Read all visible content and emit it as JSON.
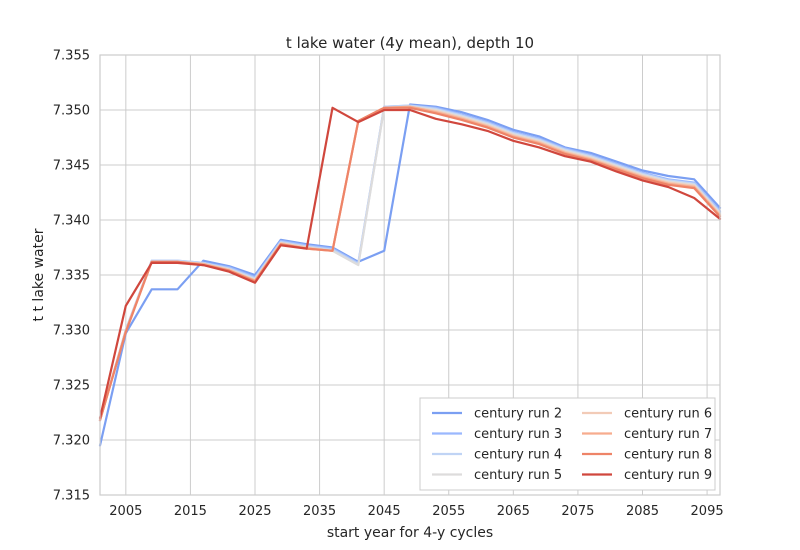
{
  "chart_data": {
    "type": "line",
    "title": "t lake water (4y mean), depth 10",
    "xlabel": "start year for 4-y cycles",
    "ylabel": "t t lake water",
    "xlim": [
      2001,
      2097
    ],
    "ylim": [
      7.315,
      7.355
    ],
    "xticks": [
      2005,
      2015,
      2025,
      2035,
      2045,
      2055,
      2065,
      2075,
      2085,
      2095
    ],
    "yticks": [
      7.315,
      7.32,
      7.325,
      7.33,
      7.335,
      7.34,
      7.345,
      7.35,
      7.355
    ],
    "ytick_labels": [
      "7.315",
      "7.320",
      "7.325",
      "7.330",
      "7.335",
      "7.340",
      "7.345",
      "7.350",
      "7.355"
    ],
    "grid": true,
    "legend": {
      "placement": "lower-right",
      "columns": 2
    },
    "x": [
      2001,
      2005,
      2009,
      2013,
      2017,
      2021,
      2025,
      2029,
      2033,
      2037,
      2041,
      2045,
      2049,
      2053,
      2057,
      2061,
      2065,
      2069,
      2073,
      2077,
      2081,
      2085,
      2089,
      2093,
      2097
    ],
    "series": [
      {
        "name": "century run 2",
        "color": "#7b9ff2",
        "values": [
          7.3195,
          7.3297,
          7.3337,
          7.3337,
          7.3363,
          7.3358,
          7.335,
          7.3382,
          7.3378,
          7.3375,
          7.3362,
          7.3372,
          7.3505,
          7.3503,
          7.3498,
          7.3491,
          7.3482,
          7.3476,
          7.3466,
          7.3461,
          7.3453,
          7.3445,
          7.344,
          7.3437,
          7.3411
        ]
      },
      {
        "name": "century run 3",
        "color": "#9ab8fe",
        "values": [
          7.3218,
          7.33,
          7.3363,
          7.3363,
          7.3361,
          7.3357,
          7.3348,
          7.3381,
          7.3377,
          7.3374,
          7.3361,
          7.3503,
          7.3504,
          7.3502,
          7.3496,
          7.3489,
          7.348,
          7.3474,
          7.3465,
          7.3459,
          7.3451,
          7.3443,
          7.3437,
          7.3434,
          7.3408
        ]
      },
      {
        "name": "century run 4",
        "color": "#c0d4f5",
        "values": [
          7.3218,
          7.33,
          7.3363,
          7.3363,
          7.3361,
          7.3356,
          7.3347,
          7.338,
          7.3376,
          7.3373,
          7.336,
          7.3503,
          7.3504,
          7.3501,
          7.3495,
          7.3488,
          7.3479,
          7.3473,
          7.3464,
          7.3458,
          7.345,
          7.3442,
          7.3436,
          7.3433,
          7.3407
        ]
      },
      {
        "name": "century run 5",
        "color": "#dddcdc",
        "values": [
          7.3218,
          7.3299,
          7.3362,
          7.3362,
          7.336,
          7.3355,
          7.3346,
          7.3379,
          7.3375,
          7.3372,
          7.3359,
          7.3502,
          7.3503,
          7.35,
          7.3494,
          7.3487,
          7.3478,
          7.3472,
          7.3463,
          7.3457,
          7.3449,
          7.3441,
          7.3435,
          7.3432,
          7.3406
        ]
      },
      {
        "name": "century run 6",
        "color": "#f2cbb7",
        "values": [
          7.3218,
          7.3299,
          7.3362,
          7.3362,
          7.336,
          7.3355,
          7.3345,
          7.3379,
          7.3375,
          7.3372,
          7.349,
          7.3502,
          7.3503,
          7.3499,
          7.3493,
          7.3486,
          7.3477,
          7.3471,
          7.3462,
          7.3456,
          7.3448,
          7.344,
          7.3434,
          7.3431,
          7.3405
        ]
      },
      {
        "name": "century run 7",
        "color": "#f7ac8e",
        "values": [
          7.3218,
          7.3299,
          7.3362,
          7.3362,
          7.336,
          7.3354,
          7.3345,
          7.3378,
          7.3374,
          7.3372,
          7.349,
          7.3502,
          7.3503,
          7.3498,
          7.3492,
          7.3485,
          7.3476,
          7.347,
          7.3461,
          7.3455,
          7.3447,
          7.3439,
          7.3433,
          7.343,
          7.3404
        ]
      },
      {
        "name": "century run 8",
        "color": "#ee8468",
        "values": [
          7.3218,
          7.3298,
          7.3362,
          7.3362,
          7.3359,
          7.3354,
          7.3344,
          7.3378,
          7.3374,
          7.3372,
          7.349,
          7.3502,
          7.3502,
          7.3497,
          7.3491,
          7.3484,
          7.3475,
          7.3469,
          7.346,
          7.3454,
          7.3446,
          7.3438,
          7.3432,
          7.3429,
          7.3403
        ]
      },
      {
        "name": "century run 9",
        "color": "#d0473d",
        "values": [
          7.322,
          7.3322,
          7.3361,
          7.3361,
          7.3359,
          7.3353,
          7.3343,
          7.3377,
          7.3374,
          7.3502,
          7.3489,
          7.35,
          7.35,
          7.3492,
          7.3487,
          7.3481,
          7.3472,
          7.3466,
          7.3458,
          7.3453,
          7.3444,
          7.3436,
          7.343,
          7.342,
          7.3401
        ]
      }
    ]
  }
}
